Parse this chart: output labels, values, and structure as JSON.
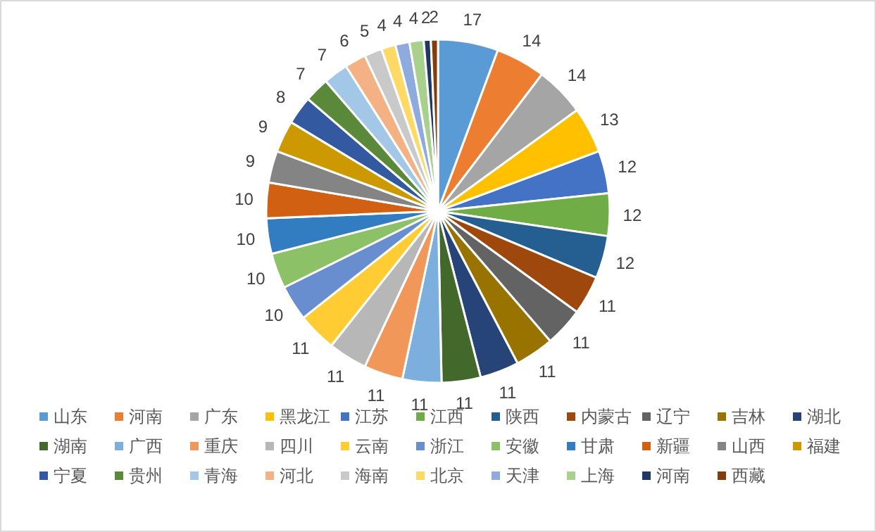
{
  "chart_data": {
    "type": "pie",
    "categories": [
      "山东",
      "河南",
      "广东",
      "黑龙江",
      "江苏",
      "江西",
      "陕西",
      "内蒙古",
      "辽宁",
      "吉林",
      "湖北",
      "湖南",
      "广西",
      "重庆",
      "四川",
      "云南",
      "浙江",
      "安徽",
      "甘肃",
      "新疆",
      "山西",
      "福建",
      "宁夏",
      "贵州",
      "青海",
      "河北",
      "海南",
      "北京",
      "天津",
      "上海",
      "河南",
      "西藏"
    ],
    "values": [
      17,
      14,
      14,
      13,
      12,
      12,
      12,
      11,
      11,
      11,
      11,
      11,
      11,
      11,
      11,
      11,
      10,
      10,
      10,
      10,
      9,
      9,
      8,
      7,
      7,
      6,
      5,
      4,
      4,
      4,
      2,
      2
    ],
    "colors": [
      "#5b9bd5",
      "#ed7d31",
      "#a5a5a5",
      "#ffc000",
      "#4472c4",
      "#70ad47",
      "#255e91",
      "#9e480e",
      "#636363",
      "#997300",
      "#264478",
      "#43682b",
      "#7cafdd",
      "#f1975a",
      "#b7b7b7",
      "#ffcd33",
      "#698ed0",
      "#8cc168",
      "#327dc2",
      "#d26012",
      "#848484",
      "#cc9a00",
      "#335aa1",
      "#5a8a39",
      "#a3c7e7",
      "#f4b183",
      "#c9c9c9",
      "#ffd966",
      "#8faadc",
      "#a9d18e",
      "#1f3864",
      "#843c0c"
    ],
    "data_labels": true,
    "legend": "bottom"
  }
}
